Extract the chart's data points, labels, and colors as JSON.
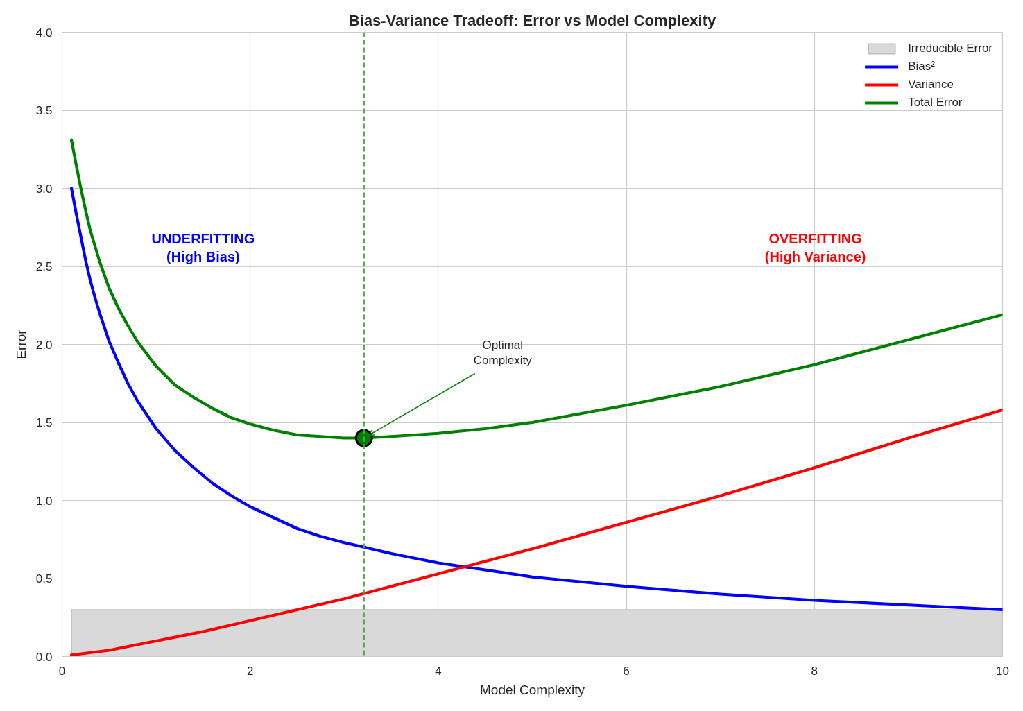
{
  "chart_data": {
    "type": "line",
    "title": "Bias-Variance Tradeoff: Error vs Model Complexity",
    "xlabel": "Model Complexity",
    "ylabel": "Error",
    "series": [
      {
        "name": "Irreducible Error",
        "type": "area",
        "color": "#d9d9d9",
        "x": [
          0.1,
          10
        ],
        "values": [
          0.3,
          0.3
        ]
      },
      {
        "name": "Bias²",
        "color": "#0000ff",
        "x": [
          0.1,
          0.15,
          0.2,
          0.25,
          0.3,
          0.35,
          0.4,
          0.5,
          0.6,
          0.7,
          0.8,
          0.9,
          1.0,
          1.2,
          1.4,
          1.6,
          1.8,
          2.0,
          2.25,
          2.5,
          2.75,
          3.0,
          3.5,
          4,
          5,
          6,
          7,
          8,
          9,
          10
        ],
        "values": [
          3.0,
          2.84,
          2.69,
          2.54,
          2.41,
          2.3,
          2.2,
          2.02,
          1.88,
          1.75,
          1.64,
          1.55,
          1.46,
          1.32,
          1.21,
          1.11,
          1.03,
          0.96,
          0.89,
          0.82,
          0.77,
          0.73,
          0.66,
          0.6,
          0.51,
          0.45,
          0.4,
          0.36,
          0.33,
          0.3
        ]
      },
      {
        "name": "Variance",
        "color": "#ff0000",
        "x": [
          0.1,
          0.5,
          1,
          1.5,
          2,
          2.5,
          3,
          3.5,
          4,
          5,
          6,
          7,
          8,
          9,
          10
        ],
        "values": [
          0.01,
          0.04,
          0.1,
          0.16,
          0.23,
          0.3,
          0.37,
          0.45,
          0.53,
          0.69,
          0.86,
          1.03,
          1.21,
          1.4,
          1.58
        ]
      },
      {
        "name": "Total Error",
        "color": "#008000",
        "x": [
          0.1,
          0.15,
          0.2,
          0.25,
          0.3,
          0.35,
          0.4,
          0.5,
          0.6,
          0.7,
          0.8,
          0.9,
          1.0,
          1.2,
          1.4,
          1.6,
          1.8,
          2.0,
          2.25,
          2.5,
          2.75,
          3.0,
          3.21,
          3.5,
          4,
          4.5,
          5,
          6,
          7,
          8,
          9,
          10
        ],
        "values": [
          3.31,
          3.15,
          3.0,
          2.86,
          2.73,
          2.63,
          2.53,
          2.36,
          2.23,
          2.12,
          2.02,
          1.94,
          1.86,
          1.74,
          1.66,
          1.59,
          1.53,
          1.49,
          1.45,
          1.42,
          1.41,
          1.4,
          1.4,
          1.41,
          1.43,
          1.46,
          1.5,
          1.61,
          1.73,
          1.87,
          2.03,
          2.19
        ]
      },
      {
        "type": "scatter",
        "color": "#008000",
        "marker": "circle",
        "x": [
          3.21
        ],
        "values": [
          1.4
        ]
      }
    ],
    "xlim": [
      0,
      10
    ],
    "ylim": [
      0,
      4
    ],
    "xticks": [
      0,
      2,
      4,
      6,
      8,
      10
    ],
    "yticks": [
      {
        "value": 0,
        "label": "0.0"
      },
      0.5,
      {
        "value": 1,
        "label": "1.0"
      },
      1.5,
      {
        "value": 2,
        "label": "2.0"
      },
      2.5,
      {
        "value": 3,
        "label": "3.0"
      },
      3.5,
      {
        "value": 4,
        "label": "4.0"
      }
    ],
    "ref_lines": [
      {
        "axis": "x",
        "value": 3.21,
        "color": "#4da64d",
        "line_style": "dashed"
      }
    ],
    "annotations": [
      "UNDERFITTING\n(High Bias)",
      "OVERFITTING\n(High Variance)",
      {
        "text": "Optimal\nComplexity",
        "x": 3.21,
        "y": 1.4
      }
    ],
    "grid": true,
    "legend": "top right",
    "line_style": "solid"
  }
}
